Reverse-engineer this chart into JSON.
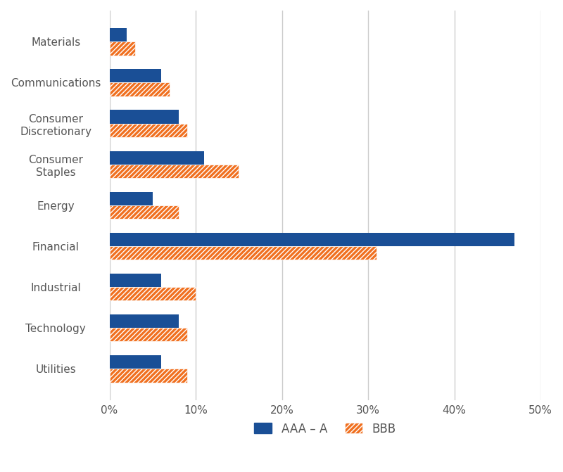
{
  "categories": [
    "Materials",
    "Communications",
    "Consumer\nDiscretionary",
    "Consumer\nStaples",
    "Energy",
    "Financial",
    "Industrial",
    "Technology",
    "Utilities"
  ],
  "aaa_a": [
    2.0,
    6.0,
    8.0,
    11.0,
    5.0,
    47.0,
    6.0,
    8.0,
    6.0
  ],
  "bbb": [
    3.0,
    7.0,
    9.0,
    15.0,
    8.0,
    31.0,
    10.0,
    9.0,
    9.0
  ],
  "aaa_color": "#1a4f96",
  "bbb_color": "#f07020",
  "background_color": "#ffffff",
  "grid_color": "#cccccc",
  "bar_height": 0.33,
  "xlim": [
    0,
    50
  ],
  "xticks": [
    0,
    10,
    20,
    30,
    40,
    50
  ],
  "xtick_labels": [
    "0%",
    "10%",
    "20%",
    "30%",
    "40%",
    "50%"
  ],
  "legend_aaa": "AAA – A",
  "legend_bbb": "BBB",
  "label_color": "#555555",
  "figsize": [
    8.0,
    6.71
  ],
  "dpi": 100
}
